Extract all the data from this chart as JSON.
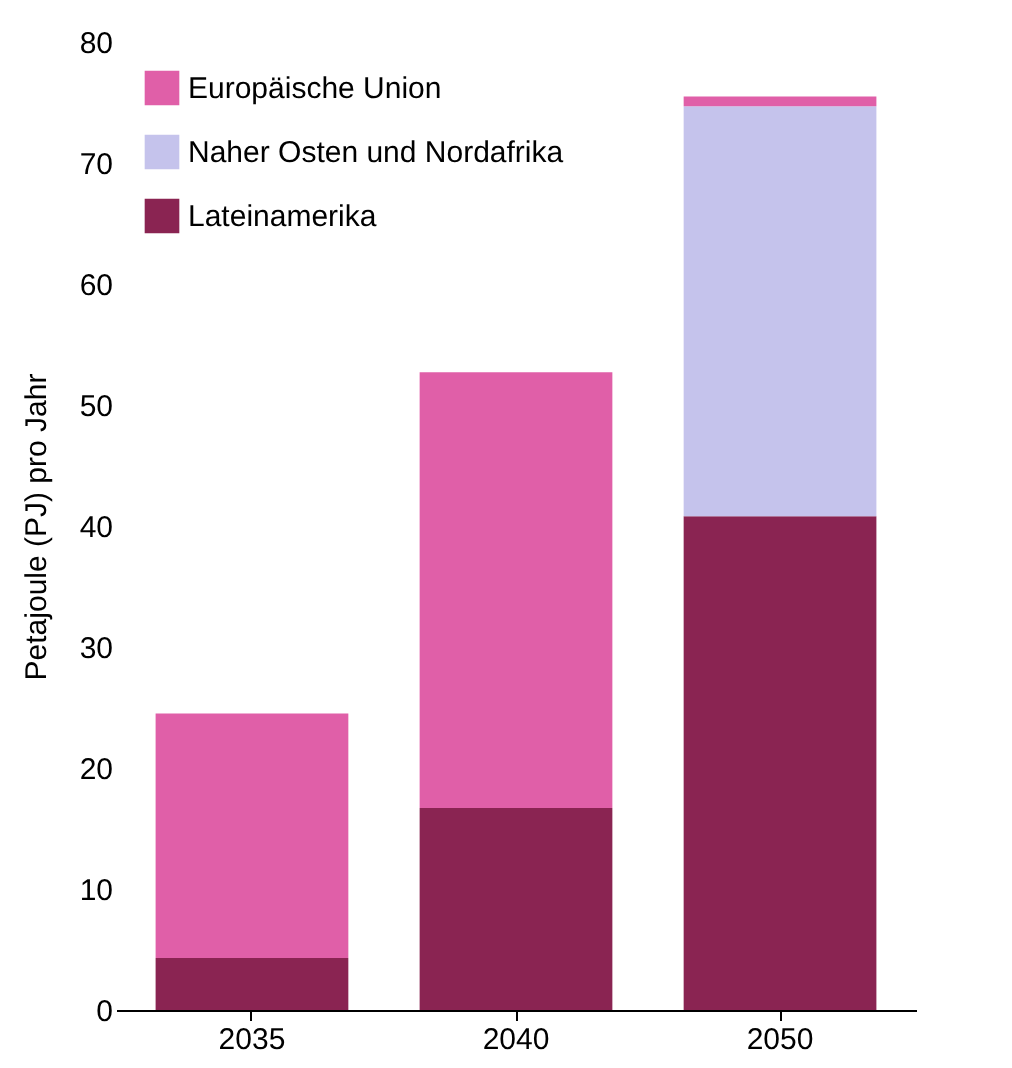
{
  "chart_data": {
    "type": "bar",
    "stacked": true,
    "ylabel": "Petajoule (PJ) pro Jahr",
    "categories": [
      "2035",
      "2040",
      "2050"
    ],
    "series": [
      {
        "name": "Lateinamerika",
        "color": "#8a2452",
        "values": [
          4.3,
          16.7,
          40.8
        ]
      },
      {
        "name": "Naher Osten und Nordafrika",
        "color": "#c5c3ec",
        "values": [
          null,
          null,
          33.9
        ]
      },
      {
        "name": "Europäische Union",
        "color": "#e05fa8",
        "values": [
          20.2,
          36.0,
          0.8
        ]
      }
    ],
    "ylim": [
      0,
      80
    ],
    "yticks": [
      0,
      10,
      20,
      30,
      40,
      50,
      60,
      70,
      80
    ],
    "grid": false,
    "legend": "top left"
  }
}
